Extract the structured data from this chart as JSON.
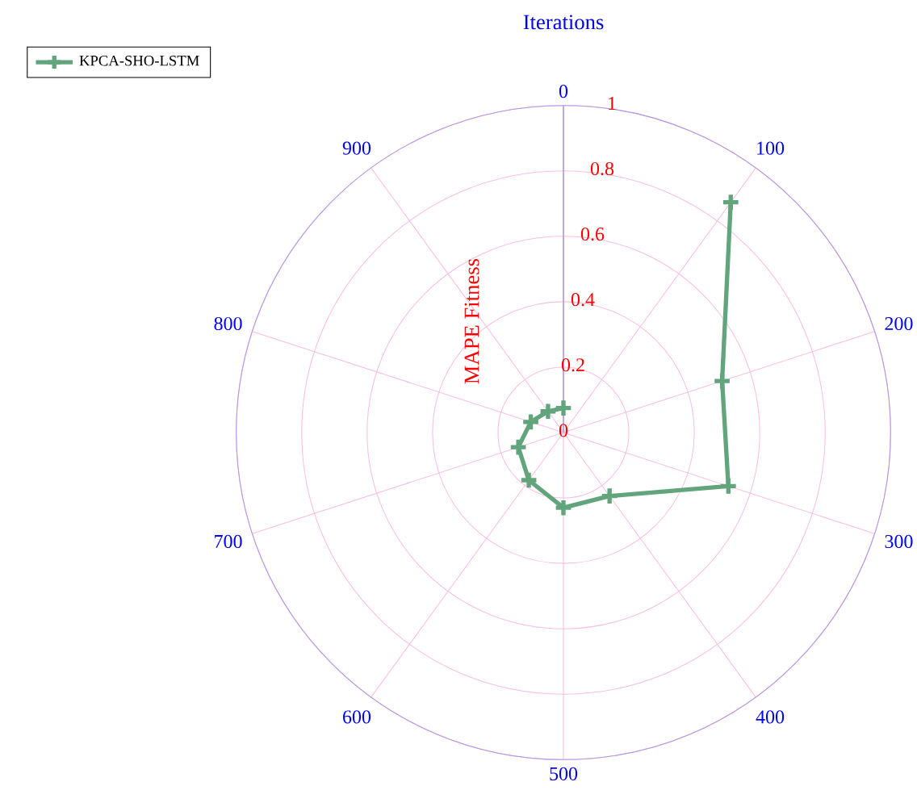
{
  "chart_data": {
    "type": "radar",
    "title": "Iterations",
    "ylabel": "MAPE Fitness",
    "categories": [
      "0",
      "100",
      "200",
      "300",
      "400",
      "500",
      "600",
      "700",
      "800",
      "900"
    ],
    "series": [
      {
        "name": "KPCA-SHO-LSTM",
        "color": "#62a57c",
        "values": [
          0.075,
          0.87,
          0.51,
          0.53,
          0.24,
          0.23,
          0.18,
          0.145,
          0.105,
          0.08
        ]
      }
    ],
    "ylim": [
      0,
      1
    ],
    "yticks": [
      0,
      0.2,
      0.4,
      0.6,
      0.8,
      1
    ],
    "grid": true,
    "legend": "top left",
    "marker": "cross",
    "line_style": "solid"
  }
}
